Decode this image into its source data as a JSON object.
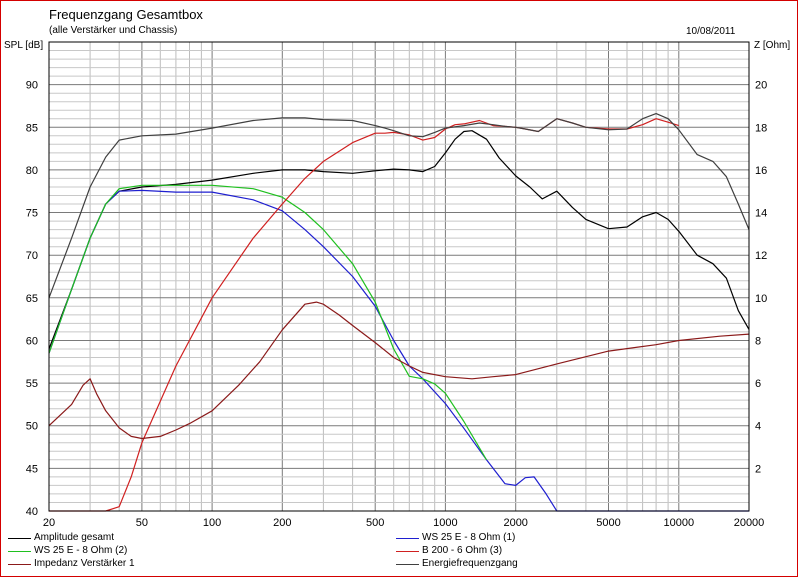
{
  "chart_data": {
    "type": "line",
    "title": "Frequenzgang Gesamtbox",
    "subtitle": "(alle Verstärker und Chassis)",
    "date": "10/08/2011",
    "ylabel": "SPL [dB]",
    "y2label": "Z [Ohm]",
    "xscale": "log",
    "xlim": [
      20,
      20000
    ],
    "ylim": [
      40,
      95
    ],
    "y2lim": [
      0,
      22
    ],
    "grid": true,
    "legend_position": "bottom",
    "xticks": [
      {
        "value": 20,
        "label": "20"
      },
      {
        "value": 50,
        "label": "50"
      },
      {
        "value": 100,
        "label": "100"
      },
      {
        "value": 200,
        "label": "200"
      },
      {
        "value": 500,
        "label": "500"
      },
      {
        "value": 1000,
        "label": "1000"
      },
      {
        "value": 2000,
        "label": "2000"
      },
      {
        "value": 5000,
        "label": "5000"
      },
      {
        "value": 10000,
        "label": "10000"
      },
      {
        "value": 20000,
        "label": "20000"
      }
    ],
    "yticks": [
      {
        "value": 40,
        "label": "40"
      },
      {
        "value": 45,
        "label": "45"
      },
      {
        "value": 50,
        "label": "50"
      },
      {
        "value": 55,
        "label": "55"
      },
      {
        "value": 60,
        "label": "60"
      },
      {
        "value": 65,
        "label": "65"
      },
      {
        "value": 70,
        "label": "70"
      },
      {
        "value": 75,
        "label": "75"
      },
      {
        "value": 80,
        "label": "80"
      },
      {
        "value": 85,
        "label": "85"
      },
      {
        "value": 90,
        "label": "90"
      }
    ],
    "y2ticks": [
      {
        "value": 2,
        "label": "2"
      },
      {
        "value": 4,
        "label": "4"
      },
      {
        "value": 6,
        "label": "6"
      },
      {
        "value": 8,
        "label": "8"
      },
      {
        "value": 10,
        "label": "10"
      },
      {
        "value": 12,
        "label": "12"
      },
      {
        "value": 14,
        "label": "14"
      },
      {
        "value": 16,
        "label": "16"
      },
      {
        "value": 18,
        "label": "18"
      },
      {
        "value": 20,
        "label": "20"
      }
    ],
    "series": [
      {
        "name": "Amplitude gesamt",
        "color": "#000000",
        "axis": "left",
        "x": [
          20,
          25,
          30,
          35,
          40,
          50,
          70,
          100,
          150,
          200,
          250,
          300,
          400,
          500,
          600,
          700,
          800,
          900,
          1000,
          1100,
          1200,
          1300,
          1500,
          1700,
          2000,
          2300,
          2600,
          3000,
          3500,
          4000,
          5000,
          6000,
          7000,
          8000,
          9000,
          10000,
          12000,
          14000,
          16000,
          18000,
          20000
        ],
        "y": [
          59,
          66,
          72,
          76,
          77.5,
          78,
          78.3,
          78.8,
          79.6,
          80.0,
          80.0,
          79.8,
          79.6,
          79.9,
          80.1,
          80.0,
          79.8,
          80.4,
          82.0,
          83.6,
          84.5,
          84.6,
          83.6,
          81.4,
          79.3,
          78.0,
          76.6,
          77.5,
          75.6,
          74.2,
          73.1,
          73.3,
          74.5,
          75.0,
          74.2,
          72.8,
          70.0,
          69.0,
          67.3,
          63.5,
          61.3
        ]
      },
      {
        "name": "WS 25 E - 8 Ohm (1)",
        "color": "#1f1fd0",
        "axis": "left",
        "x": [
          20,
          25,
          30,
          35,
          40,
          50,
          70,
          100,
          150,
          200,
          250,
          300,
          400,
          500,
          600,
          700,
          800,
          1000,
          1200,
          1500,
          1800,
          2000,
          2200,
          2400,
          2700,
          3000,
          3500,
          4000,
          20000
        ],
        "y": [
          58.5,
          66,
          72,
          76,
          77.5,
          77.6,
          77.4,
          77.4,
          76.5,
          75.2,
          73.0,
          71.0,
          67.5,
          64.0,
          60.0,
          57.0,
          55.5,
          52.6,
          49.7,
          46.0,
          43.2,
          43.0,
          43.9,
          44.0,
          42.0,
          40.0,
          40.0,
          40.0,
          40.0
        ]
      },
      {
        "name": "WS 25 E - 8 Ohm (2)",
        "color": "#1fc01f",
        "axis": "left",
        "x": [
          20,
          25,
          30,
          35,
          40,
          50,
          70,
          100,
          150,
          200,
          250,
          300,
          400,
          500,
          600,
          700,
          800,
          900,
          1000,
          1200,
          1500
        ],
        "y": [
          58.5,
          66,
          72,
          76,
          77.8,
          78.2,
          78.2,
          78.2,
          77.8,
          76.8,
          75.0,
          73.0,
          69.0,
          64.5,
          59.0,
          55.8,
          55.5,
          54.9,
          53.8,
          50.5,
          46.0
        ]
      },
      {
        "name": "B 200 - 6 Ohm (3)",
        "color": "#d02020",
        "axis": "left",
        "x": [
          20,
          30,
          35,
          40,
          45,
          50,
          70,
          100,
          150,
          200,
          250,
          300,
          400,
          500,
          550,
          600,
          700,
          800,
          900,
          1000,
          1100,
          1200,
          1400,
          1600,
          1800,
          2000,
          2200,
          2500,
          3000,
          3500,
          4000,
          5000,
          6000,
          7000,
          8000,
          9000,
          10000
        ],
        "y": [
          40,
          40,
          40,
          40.5,
          44,
          48,
          57,
          65,
          72,
          76,
          79,
          81,
          83.2,
          84.3,
          84.3,
          84.4,
          84.1,
          83.5,
          83.8,
          84.8,
          85.3,
          85.4,
          85.8,
          85.2,
          85.1,
          85.0,
          84.8,
          84.5,
          86.0,
          85.5,
          85.0,
          84.8,
          84.8,
          85.3,
          86.0,
          85.6,
          85.2
        ]
      },
      {
        "name": "Impedanz Verstärker 1",
        "color": "#8b1a1a",
        "axis": "right",
        "x": [
          20,
          25,
          28,
          30,
          32,
          35,
          40,
          45,
          50,
          60,
          70,
          80,
          100,
          130,
          160,
          200,
          250,
          280,
          300,
          350,
          400,
          500,
          600,
          700,
          800,
          1000,
          1300,
          1600,
          2000,
          3000,
          5000,
          8000,
          10000,
          15000,
          20000
        ],
        "y": [
          4.0,
          5.0,
          5.9,
          6.2,
          5.5,
          4.7,
          3.9,
          3.5,
          3.4,
          3.5,
          3.8,
          4.1,
          4.7,
          5.9,
          7.0,
          8.5,
          9.7,
          9.8,
          9.7,
          9.2,
          8.7,
          7.9,
          7.2,
          6.8,
          6.5,
          6.3,
          6.2,
          6.3,
          6.4,
          6.9,
          7.5,
          7.8,
          8.0,
          8.2,
          8.3
        ]
      },
      {
        "name": "Energiefrequenzgang",
        "color": "#404040",
        "axis": "left",
        "x": [
          20,
          25,
          30,
          35,
          40,
          50,
          70,
          100,
          150,
          200,
          250,
          300,
          400,
          500,
          550,
          600,
          700,
          800,
          900,
          1000,
          1200,
          1400,
          1600,
          1800,
          2000,
          2200,
          2500,
          3000,
          3500,
          4000,
          5000,
          6000,
          7000,
          8000,
          9000,
          10000,
          12000,
          14000,
          16000,
          18000,
          20000
        ],
        "y": [
          65,
          72,
          78,
          81.5,
          83.5,
          84.0,
          84.2,
          84.9,
          85.8,
          86.1,
          86.1,
          85.9,
          85.8,
          85.2,
          84.9,
          84.6,
          84.0,
          83.9,
          84.4,
          84.9,
          85.2,
          85.5,
          85.3,
          85.1,
          85.0,
          84.8,
          84.5,
          86.0,
          85.5,
          85.0,
          84.7,
          84.8,
          86.0,
          86.6,
          86.0,
          84.7,
          81.8,
          81.0,
          79.2,
          76.0,
          73.0
        ]
      }
    ]
  }
}
